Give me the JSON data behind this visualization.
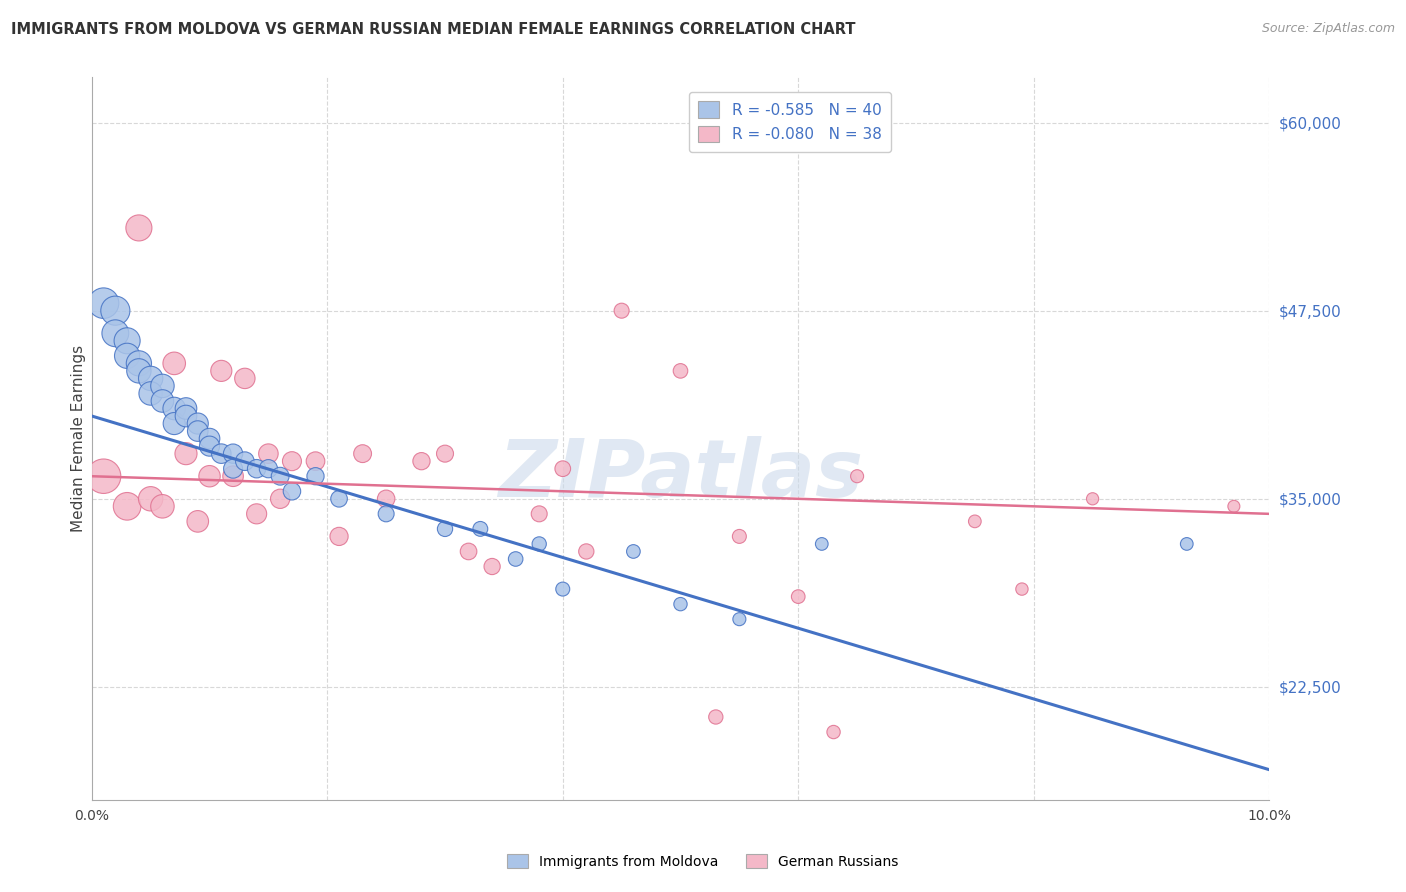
{
  "title": "IMMIGRANTS FROM MOLDOVA VS GERMAN RUSSIAN MEDIAN FEMALE EARNINGS CORRELATION CHART",
  "source": "Source: ZipAtlas.com",
  "ylabel": "Median Female Earnings",
  "xlim": [
    0.0,
    0.1
  ],
  "ylim": [
    15000,
    63000
  ],
  "xticks": [
    0.0,
    0.02,
    0.04,
    0.06,
    0.08,
    0.1
  ],
  "xticklabels": [
    "0.0%",
    "",
    "",
    "",
    "",
    "10.0%"
  ],
  "ytick_positions": [
    22500,
    35000,
    47500,
    60000
  ],
  "ytick_labels": [
    "$22,500",
    "$35,000",
    "$47,500",
    "$60,000"
  ],
  "bg_color": "#ffffff",
  "grid_color": "#d8d8d8",
  "series1_name": "Immigrants from Moldova",
  "series1_color": "#aac4e8",
  "series1_line_color": "#4472c4",
  "series1_R": -0.585,
  "series1_N": 40,
  "series2_name": "German Russians",
  "series2_color": "#f4b8c8",
  "series2_line_color": "#e07090",
  "series2_R": -0.08,
  "series2_N": 38,
  "watermark": "ZIPatlas",
  "blue_scatter_x": [
    0.001,
    0.002,
    0.002,
    0.003,
    0.003,
    0.004,
    0.004,
    0.005,
    0.005,
    0.006,
    0.006,
    0.007,
    0.007,
    0.008,
    0.008,
    0.009,
    0.009,
    0.01,
    0.01,
    0.011,
    0.012,
    0.012,
    0.013,
    0.014,
    0.015,
    0.016,
    0.017,
    0.019,
    0.021,
    0.025,
    0.03,
    0.033,
    0.036,
    0.038,
    0.04,
    0.046,
    0.05,
    0.055,
    0.062,
    0.093
  ],
  "blue_scatter_y": [
    48000,
    47500,
    46000,
    45500,
    44500,
    44000,
    43500,
    43000,
    42000,
    42500,
    41500,
    41000,
    40000,
    41000,
    40500,
    40000,
    39500,
    39000,
    38500,
    38000,
    38000,
    37000,
    37500,
    37000,
    37000,
    36500,
    35500,
    36500,
    35000,
    34000,
    33000,
    33000,
    31000,
    32000,
    29000,
    31500,
    28000,
    27000,
    32000,
    32000
  ],
  "pink_scatter_x": [
    0.001,
    0.003,
    0.004,
    0.005,
    0.006,
    0.007,
    0.008,
    0.009,
    0.01,
    0.011,
    0.012,
    0.013,
    0.014,
    0.015,
    0.016,
    0.017,
    0.019,
    0.021,
    0.023,
    0.025,
    0.028,
    0.03,
    0.032,
    0.034,
    0.038,
    0.04,
    0.042,
    0.045,
    0.05,
    0.053,
    0.055,
    0.06,
    0.063,
    0.065,
    0.075,
    0.079,
    0.085,
    0.097
  ],
  "pink_scatter_y": [
    36500,
    34500,
    53000,
    35000,
    34500,
    44000,
    38000,
    33500,
    36500,
    43500,
    36500,
    43000,
    34000,
    38000,
    35000,
    37500,
    37500,
    32500,
    38000,
    35000,
    37500,
    38000,
    31500,
    30500,
    34000,
    37000,
    31500,
    47500,
    43500,
    20500,
    32500,
    28500,
    19500,
    36500,
    33500,
    29000,
    35000,
    34500
  ],
  "blue_line_x0": 0.0,
  "blue_line_y0": 40500,
  "blue_line_x1": 0.1,
  "blue_line_y1": 17000,
  "pink_line_x0": 0.0,
  "pink_line_y0": 36500,
  "pink_line_x1": 0.1,
  "pink_line_y1": 34000,
  "blue_sizes": [
    220,
    200,
    170,
    160,
    150,
    150,
    140,
    140,
    130,
    130,
    120,
    120,
    115,
    110,
    110,
    105,
    100,
    100,
    95,
    90,
    88,
    85,
    82,
    80,
    78,
    75,
    72,
    70,
    65,
    60,
    55,
    52,
    50,
    48,
    46,
    44,
    42,
    40,
    38,
    38
  ],
  "pink_sizes": [
    280,
    180,
    160,
    140,
    130,
    120,
    115,
    110,
    108,
    105,
    100,
    98,
    95,
    90,
    88,
    85,
    82,
    78,
    75,
    72,
    70,
    68,
    65,
    62,
    60,
    58,
    55,
    53,
    50,
    48,
    46,
    44,
    42,
    40,
    38,
    36,
    35,
    34
  ]
}
